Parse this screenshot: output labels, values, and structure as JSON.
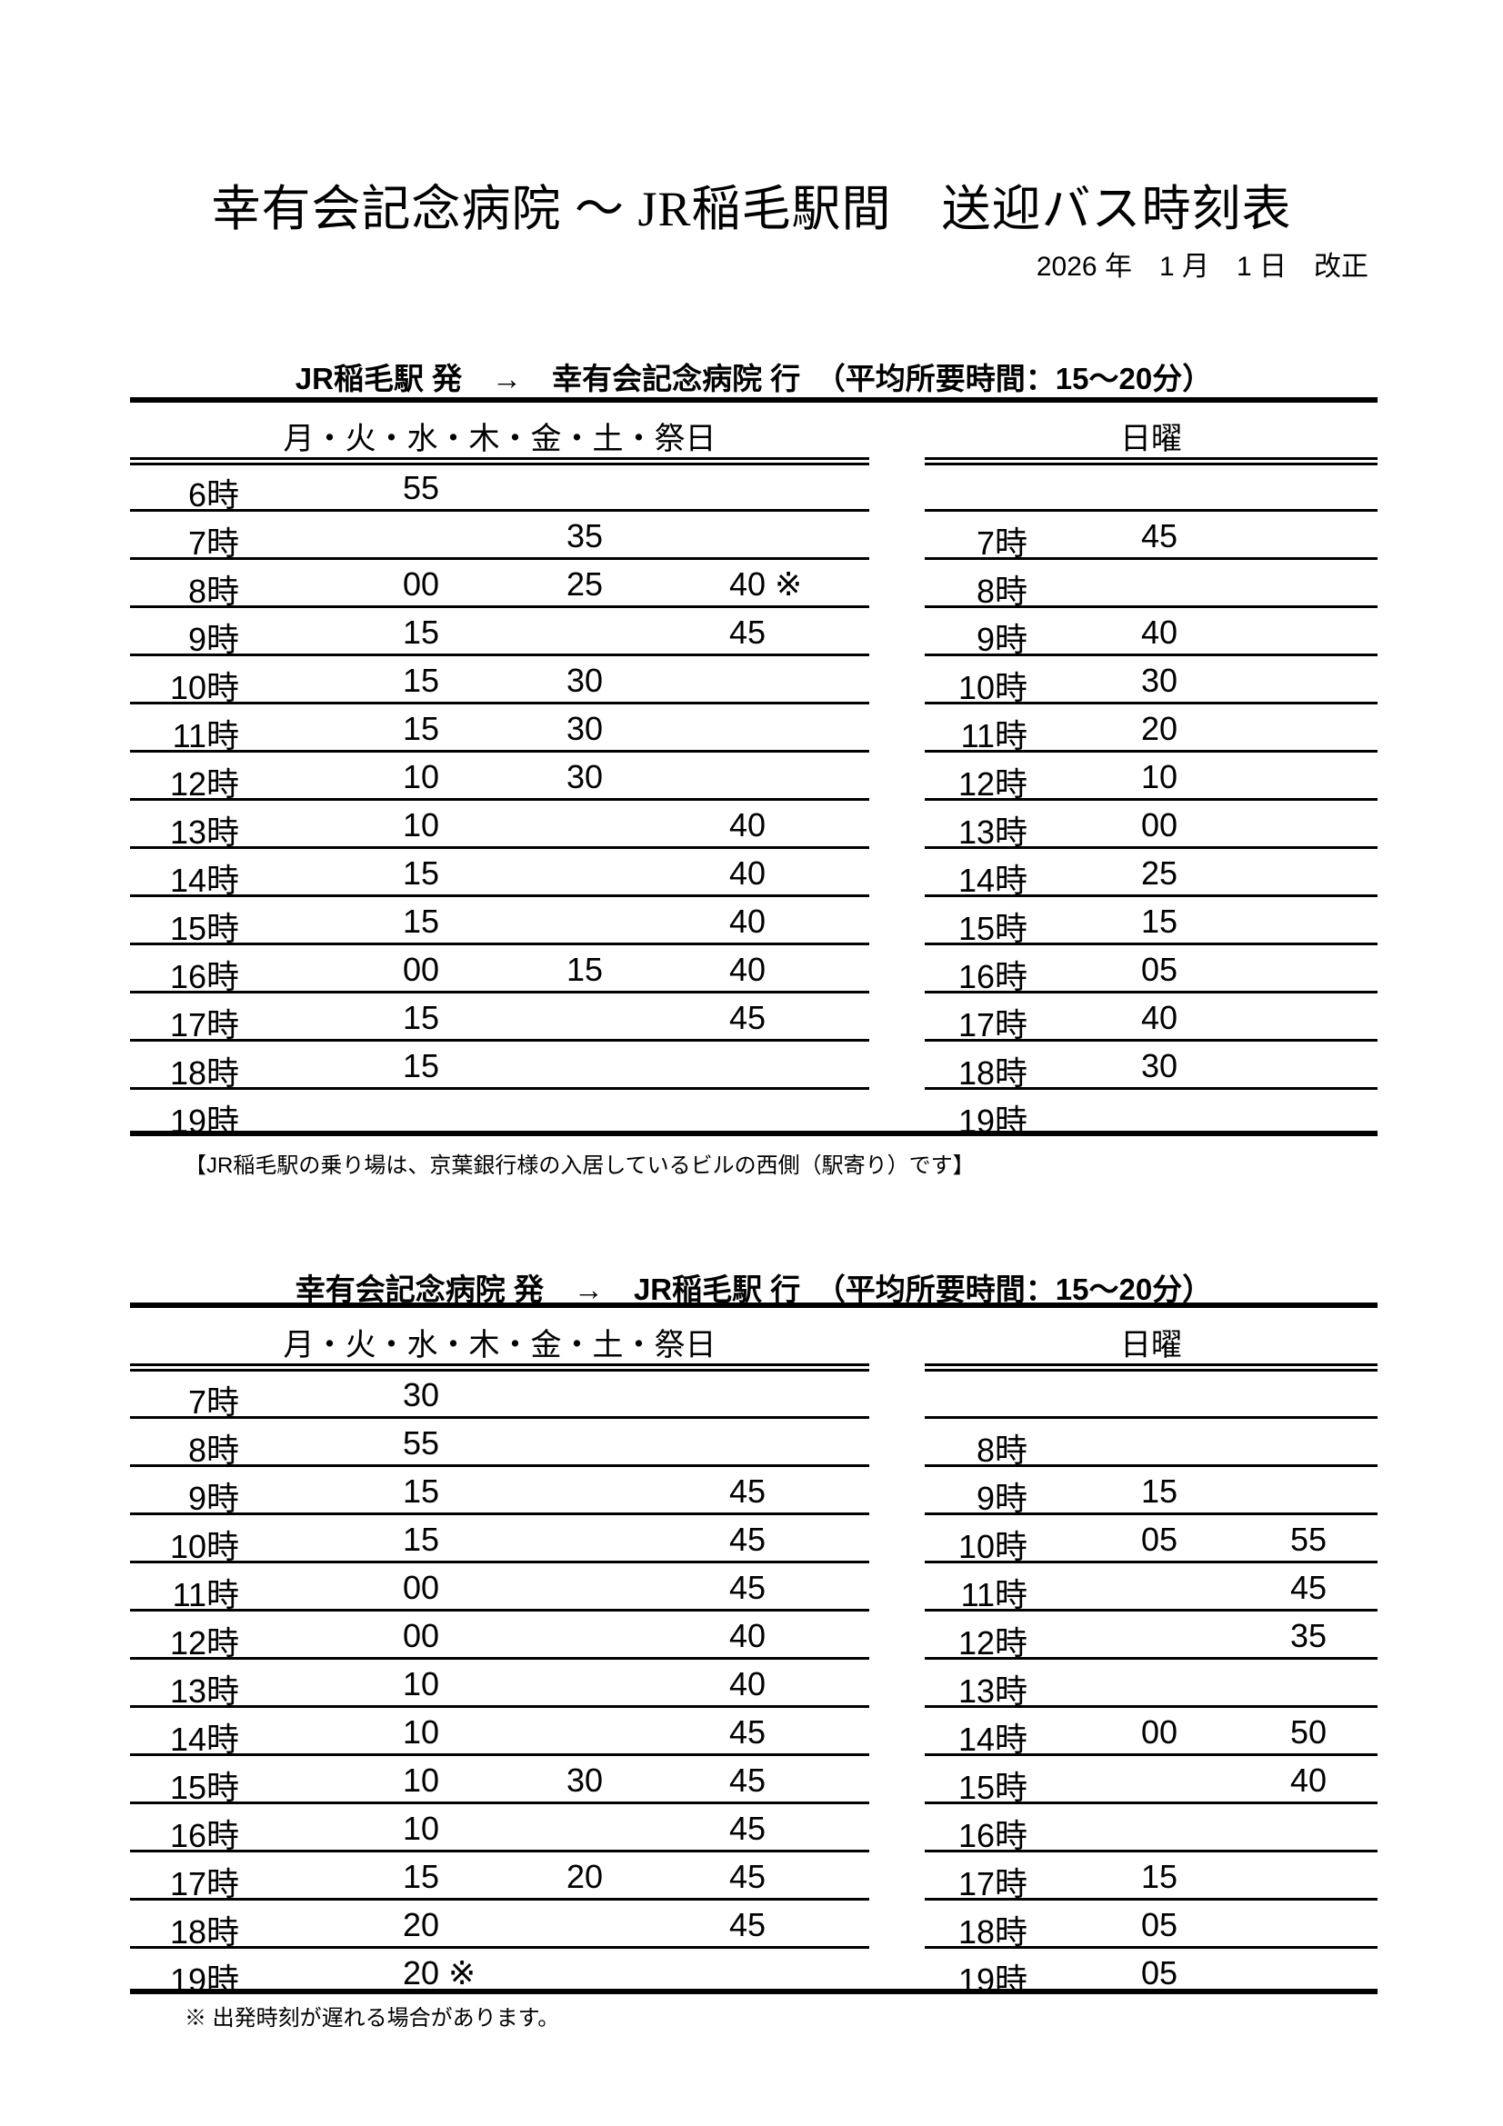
{
  "title": "幸有会記念病院 〜 JR稲毛駅間　送迎バス時刻表",
  "revision_date": "2026 年　1 月　1 日　改正",
  "sections": [
    {
      "heading": "JR稲毛駅 発　→　幸有会記念病院 行　（平均所要時間：15〜20分）",
      "weekday_label": "月・火・水・木・金・土・祭日",
      "sunday_label": "日曜",
      "weekday_rows": [
        {
          "h": "6時",
          "m": [
            "55",
            "",
            ""
          ]
        },
        {
          "h": "7時",
          "m": [
            "",
            "35",
            ""
          ]
        },
        {
          "h": "8時",
          "m": [
            "00",
            "25",
            "40 ※"
          ]
        },
        {
          "h": "9時",
          "m": [
            "15",
            "",
            "45"
          ]
        },
        {
          "h": "10時",
          "m": [
            "15",
            "30",
            ""
          ]
        },
        {
          "h": "11時",
          "m": [
            "15",
            "30",
            ""
          ]
        },
        {
          "h": "12時",
          "m": [
            "10",
            "30",
            ""
          ]
        },
        {
          "h": "13時",
          "m": [
            "10",
            "",
            "40"
          ]
        },
        {
          "h": "14時",
          "m": [
            "15",
            "",
            "40"
          ]
        },
        {
          "h": "15時",
          "m": [
            "15",
            "",
            "40"
          ]
        },
        {
          "h": "16時",
          "m": [
            "00",
            "15",
            "40"
          ]
        },
        {
          "h": "17時",
          "m": [
            "15",
            "",
            "45"
          ]
        },
        {
          "h": "18時",
          "m": [
            "15",
            "",
            ""
          ]
        },
        {
          "h": "19時",
          "m": [
            "",
            "",
            ""
          ]
        }
      ],
      "sunday_rows": [
        {
          "h": "",
          "m": [
            "",
            ""
          ]
        },
        {
          "h": "7時",
          "m": [
            "45",
            ""
          ]
        },
        {
          "h": "8時",
          "m": [
            "",
            ""
          ]
        },
        {
          "h": "9時",
          "m": [
            "40",
            ""
          ]
        },
        {
          "h": "10時",
          "m": [
            "30",
            ""
          ]
        },
        {
          "h": "11時",
          "m": [
            "20",
            ""
          ]
        },
        {
          "h": "12時",
          "m": [
            "10",
            ""
          ]
        },
        {
          "h": "13時",
          "m": [
            "00",
            ""
          ]
        },
        {
          "h": "14時",
          "m": [
            "25",
            ""
          ]
        },
        {
          "h": "15時",
          "m": [
            "15",
            ""
          ]
        },
        {
          "h": "16時",
          "m": [
            "05",
            ""
          ]
        },
        {
          "h": "17時",
          "m": [
            "40",
            ""
          ]
        },
        {
          "h": "18時",
          "m": [
            "30",
            ""
          ]
        },
        {
          "h": "19時",
          "m": [
            "",
            ""
          ]
        }
      ],
      "note": "【JR稲毛駅の乗り場は、京葉銀行様の入居しているビルの西側（駅寄り）です】"
    },
    {
      "heading": "幸有会記念病院 発　→　JR稲毛駅 行　（平均所要時間：15〜20分）",
      "weekday_label": "月・火・水・木・金・土・祭日",
      "sunday_label": "日曜",
      "weekday_rows": [
        {
          "h": "7時",
          "m": [
            "30",
            "",
            ""
          ]
        },
        {
          "h": "8時",
          "m": [
            "55",
            "",
            ""
          ]
        },
        {
          "h": "9時",
          "m": [
            "15",
            "",
            "45"
          ]
        },
        {
          "h": "10時",
          "m": [
            "15",
            "",
            "45"
          ]
        },
        {
          "h": "11時",
          "m": [
            "00",
            "",
            "45"
          ]
        },
        {
          "h": "12時",
          "m": [
            "00",
            "",
            "40"
          ]
        },
        {
          "h": "13時",
          "m": [
            "10",
            "",
            "40"
          ]
        },
        {
          "h": "14時",
          "m": [
            "10",
            "",
            "45"
          ]
        },
        {
          "h": "15時",
          "m": [
            "10",
            "30",
            "45"
          ]
        },
        {
          "h": "16時",
          "m": [
            "10",
            "",
            "45"
          ]
        },
        {
          "h": "17時",
          "m": [
            "15",
            "20",
            "45"
          ]
        },
        {
          "h": "18時",
          "m": [
            "20",
            "",
            "45"
          ]
        },
        {
          "h": "19時",
          "m": [
            "20 ※",
            "",
            ""
          ]
        }
      ],
      "sunday_rows": [
        {
          "h": "",
          "m": [
            "",
            ""
          ]
        },
        {
          "h": "8時",
          "m": [
            "",
            ""
          ]
        },
        {
          "h": "9時",
          "m": [
            "15",
            ""
          ]
        },
        {
          "h": "10時",
          "m": [
            "05",
            "55"
          ]
        },
        {
          "h": "11時",
          "m": [
            "",
            "45"
          ]
        },
        {
          "h": "12時",
          "m": [
            "",
            "35"
          ]
        },
        {
          "h": "13時",
          "m": [
            "",
            ""
          ]
        },
        {
          "h": "14時",
          "m": [
            "00",
            "50"
          ]
        },
        {
          "h": "15時",
          "m": [
            "",
            "40"
          ]
        },
        {
          "h": "16時",
          "m": [
            "",
            ""
          ]
        },
        {
          "h": "17時",
          "m": [
            "15",
            ""
          ]
        },
        {
          "h": "18時",
          "m": [
            "05",
            ""
          ]
        },
        {
          "h": "19時",
          "m": [
            "05",
            ""
          ]
        }
      ],
      "note": "※ 出発時刻が遅れる場合があります。"
    }
  ]
}
